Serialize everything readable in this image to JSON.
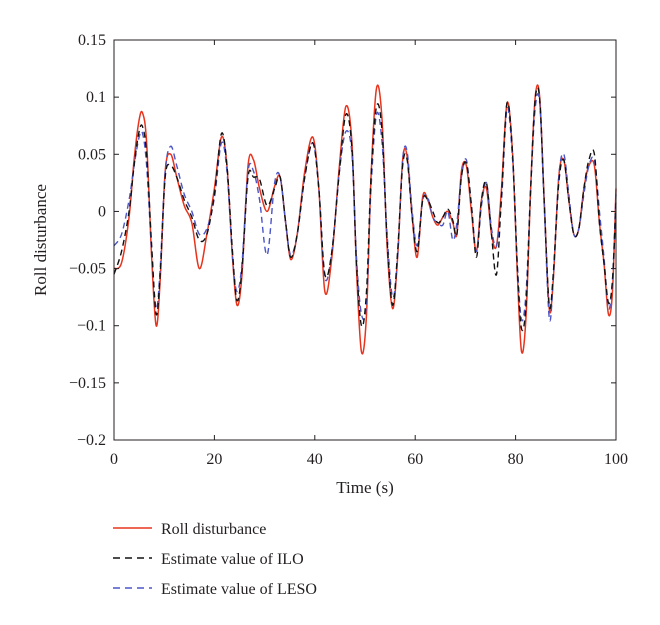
{
  "chart_data": {
    "type": "line",
    "xlabel": "Time (s)",
    "ylabel": "Roll disturbance",
    "xlim": [
      0,
      100
    ],
    "ylim": [
      -0.2,
      0.15
    ],
    "xticks": [
      0,
      20,
      40,
      60,
      80,
      100
    ],
    "xtick_labels": [
      "0",
      "20",
      "40",
      "60",
      "80",
      "100"
    ],
    "yticks": [
      0.15,
      0.1,
      0.05,
      0,
      -0.05,
      -0.1,
      -0.15,
      -0.2
    ],
    "ytick_labels": [
      "0.15",
      "0.1",
      "0.05",
      "0",
      "−0.05",
      "−0.1",
      "−0.15",
      "−0.2"
    ],
    "grid": false,
    "legend_position": "below",
    "series": [
      {
        "name": "Roll disturbance",
        "color": "#e8341c",
        "style": "solid",
        "x": [
          0,
          1.5,
          3,
          4,
          5,
          5.7,
          6.5,
          7.5,
          8.4,
          9.2,
          10.2,
          11.3,
          12.5,
          14,
          15.5,
          17,
          18.5,
          20,
          21.4,
          22.5,
          23.6,
          24.5,
          25.5,
          26.7,
          27.8,
          29,
          30.5,
          32,
          33.1,
          34.2,
          35.2,
          36.5,
          38,
          39.6,
          40.8,
          42,
          43.4,
          44.9,
          46.2,
          47.4,
          48.3,
          49.3,
          50.3,
          51.2,
          52.3,
          53.4,
          54.4,
          55.5,
          56.5,
          57.5,
          58.4,
          59.4,
          60.4,
          61.5,
          62.5,
          63.5,
          64.5,
          65.5,
          66.5,
          67.5,
          68.3,
          69.2,
          70.2,
          71.2,
          72.2,
          73.2,
          74.2,
          75.2,
          76.2,
          77.2,
          78.3,
          79.4,
          80.4,
          81.2,
          82.1,
          83,
          83.9,
          84.8,
          85.7,
          86.7,
          87.5,
          88.6,
          89.6,
          90.6,
          91.6,
          92.6,
          93.6,
          94.6,
          95.7,
          96.7,
          97.6,
          98.5,
          99.3,
          100
        ],
        "y": [
          -0.05,
          -0.045,
          -0.005,
          0.045,
          0.08,
          0.086,
          0.06,
          -0.04,
          -0.1,
          -0.06,
          0.035,
          0.05,
          0.03,
          0.005,
          -0.01,
          -0.05,
          -0.02,
          0.02,
          0.065,
          0.04,
          -0.04,
          -0.082,
          -0.055,
          0.04,
          0.045,
          0.02,
          0.0,
          0.022,
          0.03,
          -0.01,
          -0.042,
          -0.02,
          0.035,
          0.065,
          0.02,
          -0.07,
          -0.04,
          0.04,
          0.092,
          0.06,
          -0.05,
          -0.123,
          -0.09,
          0.03,
          0.108,
          0.08,
          -0.03,
          -0.085,
          -0.04,
          0.045,
          0.048,
          -0.005,
          -0.04,
          0.013,
          0.01,
          -0.005,
          -0.012,
          -0.005,
          0.0,
          -0.01,
          -0.02,
          0.035,
          0.04,
          0.0,
          -0.035,
          0.01,
          0.02,
          -0.02,
          -0.03,
          0.02,
          0.095,
          0.05,
          -0.06,
          -0.123,
          -0.09,
          0.02,
          0.1,
          0.1,
          0.01,
          -0.085,
          -0.06,
          0.03,
          0.045,
          0.01,
          -0.02,
          -0.015,
          0.02,
          0.04,
          0.04,
          -0.01,
          -0.045,
          -0.09,
          -0.07,
          0.02
        ]
      },
      {
        "name": "Estimate value of ILO",
        "color": "#111111",
        "style": "dashed",
        "x": [
          0,
          1.5,
          3,
          4,
          5,
          5.7,
          6.5,
          7.5,
          8.4,
          9.2,
          10.2,
          11.3,
          12.5,
          14,
          15.5,
          17,
          18.5,
          20,
          21.4,
          22.5,
          23.6,
          24.5,
          25.5,
          26.7,
          27.8,
          29,
          30.5,
          32,
          33.1,
          34.2,
          35.2,
          36.5,
          38,
          39.6,
          40.8,
          42,
          43.4,
          44.9,
          46.2,
          47.4,
          48.3,
          49.3,
          50.3,
          51.2,
          52.3,
          53.4,
          54.4,
          55.5,
          56.5,
          57.5,
          58.4,
          59.4,
          60.4,
          61.5,
          62.5,
          63.5,
          64.5,
          65.5,
          66.5,
          67.5,
          68.3,
          69.2,
          70.2,
          71.2,
          72.2,
          73.2,
          74.2,
          75.2,
          76.2,
          77.2,
          78.3,
          79.4,
          80.4,
          81.2,
          82.1,
          83,
          83.9,
          84.8,
          85.7,
          86.7,
          87.5,
          88.6,
          89.6,
          90.6,
          91.6,
          92.6,
          93.6,
          94.6,
          95.7,
          96.7,
          97.6,
          98.5,
          99.3,
          100
        ],
        "y": [
          -0.055,
          -0.035,
          0.0,
          0.04,
          0.07,
          0.074,
          0.05,
          -0.03,
          -0.09,
          -0.055,
          0.03,
          0.04,
          0.03,
          0.01,
          -0.005,
          -0.025,
          -0.02,
          0.015,
          0.068,
          0.04,
          -0.035,
          -0.078,
          -0.05,
          0.03,
          0.03,
          0.028,
          0.005,
          0.02,
          0.03,
          -0.01,
          -0.04,
          -0.02,
          0.03,
          0.06,
          0.02,
          -0.055,
          -0.035,
          0.035,
          0.085,
          0.055,
          -0.045,
          -0.1,
          -0.07,
          0.03,
          0.092,
          0.07,
          -0.025,
          -0.082,
          -0.035,
          0.04,
          0.045,
          -0.005,
          -0.035,
          0.01,
          0.01,
          0.0,
          -0.01,
          -0.005,
          0.002,
          -0.008,
          -0.02,
          0.03,
          0.042,
          0.005,
          -0.04,
          0.01,
          0.025,
          -0.02,
          -0.055,
          0.015,
          0.095,
          0.05,
          -0.055,
          -0.103,
          -0.08,
          0.02,
          0.098,
          0.098,
          0.008,
          -0.082,
          -0.055,
          0.025,
          0.045,
          0.01,
          -0.02,
          -0.015,
          0.02,
          0.045,
          0.05,
          -0.01,
          -0.045,
          -0.08,
          -0.06,
          0.01
        ]
      },
      {
        "name": "Estimate value of LESO",
        "color": "#4a55c8",
        "style": "dashed",
        "x": [
          0,
          1.5,
          3,
          4,
          5,
          5.7,
          6.5,
          7.5,
          8.4,
          9.2,
          10.2,
          11.3,
          12.5,
          14,
          15.5,
          17,
          18.5,
          20,
          21.4,
          22.5,
          23.6,
          24.5,
          25.5,
          26.7,
          27.8,
          29,
          30.5,
          32,
          33.1,
          34.2,
          35.2,
          36.5,
          38,
          39.6,
          40.8,
          42,
          43.4,
          44.9,
          46.2,
          47.4,
          48.3,
          49.3,
          50.3,
          51.2,
          52.3,
          53.4,
          54.4,
          55.5,
          56.5,
          57.5,
          58.4,
          59.4,
          60.4,
          61.5,
          62.5,
          63.5,
          64.5,
          65.5,
          66.5,
          67.5,
          68.3,
          69.2,
          70.2,
          71.2,
          72.2,
          73.2,
          74.2,
          75.2,
          76.2,
          77.2,
          78.3,
          79.4,
          80.4,
          81.2,
          82.1,
          83,
          83.9,
          84.8,
          85.7,
          86.7,
          87.5,
          88.6,
          89.6,
          90.6,
          91.6,
          92.6,
          93.6,
          94.6,
          95.7,
          96.7,
          97.6,
          98.5,
          99.3,
          100
        ],
        "y": [
          -0.03,
          -0.02,
          0.01,
          0.04,
          0.065,
          0.068,
          0.04,
          -0.035,
          -0.085,
          -0.05,
          0.035,
          0.057,
          0.04,
          0.015,
          0.0,
          -0.02,
          -0.015,
          0.012,
          0.06,
          0.035,
          -0.04,
          -0.07,
          -0.045,
          0.035,
          0.035,
          0.01,
          -0.038,
          0.025,
          0.03,
          -0.01,
          -0.038,
          -0.02,
          0.03,
          0.06,
          0.02,
          -0.058,
          -0.035,
          0.035,
          0.07,
          0.05,
          -0.04,
          -0.09,
          -0.08,
          0.02,
          0.085,
          0.06,
          -0.02,
          -0.075,
          -0.04,
          0.045,
          0.052,
          0.0,
          -0.03,
          0.01,
          0.012,
          -0.005,
          -0.01,
          -0.012,
          0.0,
          -0.025,
          -0.01,
          0.03,
          0.045,
          0.005,
          -0.035,
          0.005,
          0.025,
          -0.015,
          -0.03,
          0.01,
          0.09,
          0.045,
          -0.05,
          -0.095,
          -0.07,
          0.02,
          0.09,
          0.095,
          0.005,
          -0.093,
          -0.06,
          0.03,
          0.05,
          0.015,
          -0.02,
          -0.015,
          0.015,
          0.04,
          0.045,
          0.0,
          -0.04,
          -0.085,
          -0.06,
          0.015
        ]
      }
    ]
  }
}
